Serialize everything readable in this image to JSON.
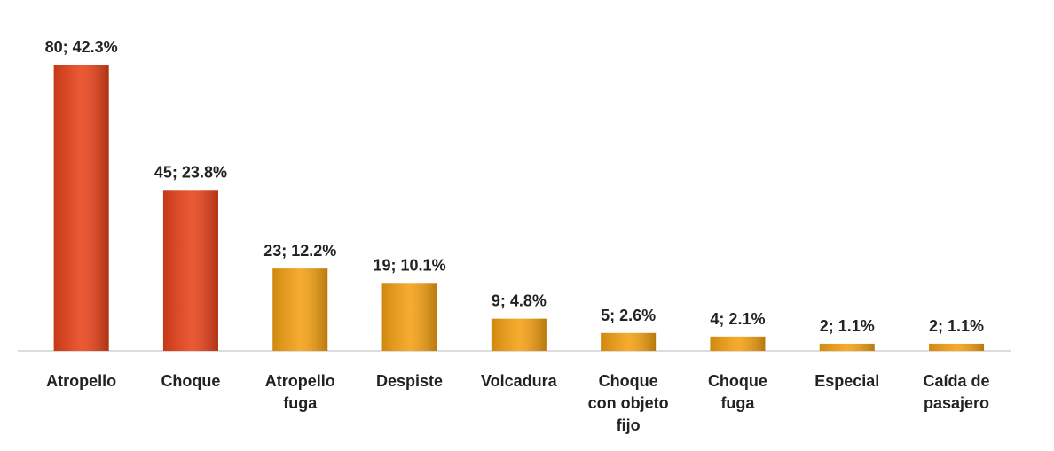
{
  "chart_data": {
    "type": "bar",
    "categories": [
      "Atropello",
      "Choque",
      "Atropello\nfuga",
      "Despiste",
      "Volcadura",
      "Choque\ncon objeto\nfijo",
      "Choque\nfuga",
      "Especial",
      "Caída de\npasajero"
    ],
    "values": [
      80,
      45,
      23,
      19,
      9,
      5,
      4,
      2,
      2
    ],
    "value_labels": [
      "80; 42.3%",
      "45; 23.8%",
      "23; 12.2%",
      "19; 10.1%",
      "9; 4.8%",
      "5; 2.6%",
      "4; 2.1%",
      "2; 1.1%",
      "2; 1.1%"
    ],
    "colors": [
      "#e8421a",
      "#e8421a",
      "#f4a012",
      "#f4a012",
      "#f4a012",
      "#f4a012",
      "#f4a012",
      "#f4a012",
      "#f4a012"
    ],
    "ylim": [
      0,
      80
    ]
  }
}
